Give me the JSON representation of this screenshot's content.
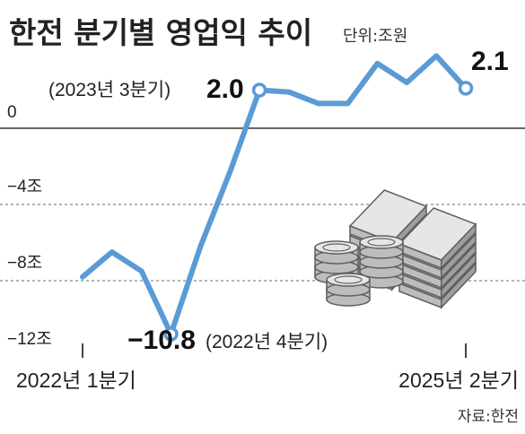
{
  "title": "한전 분기별 영업익 추이",
  "unit": "단위:조원",
  "source": "자료:한전",
  "x_start_label": "2022년 1분기",
  "x_end_label": "2025년 2분기",
  "annotations": {
    "min_value": "−10.8",
    "min_period": "(2022년 4분기)",
    "turn_period": "(2023년 3분기)",
    "turn_value": "2.0",
    "last_value": "2.1"
  },
  "colors": {
    "line": "#5b9bd5",
    "grid": "#888888"
  },
  "icon": "coin-stacks-and-money-bundles-icon",
  "chart_data": {
    "type": "line",
    "title": "한전 분기별 영업익 추이",
    "unit": "조원",
    "ylim": [
      -12,
      4
    ],
    "yticks": [
      0,
      -4,
      -8,
      -12
    ],
    "ytick_labels": [
      "0",
      "−4조",
      "−8조",
      "−12조"
    ],
    "x": [
      "2022-Q1",
      "2022-Q2",
      "2022-Q3",
      "2022-Q4",
      "2023-Q1",
      "2023-Q2",
      "2023-Q3",
      "2023-Q4",
      "2024-Q1",
      "2024-Q2",
      "2024-Q3",
      "2024-Q4",
      "2025-Q1",
      "2025-Q2"
    ],
    "values": [
      -7.8,
      -6.5,
      -7.5,
      -10.8,
      -6.2,
      -2.3,
      2.0,
      1.9,
      1.3,
      1.3,
      3.4,
      2.4,
      3.8,
      2.1
    ]
  }
}
